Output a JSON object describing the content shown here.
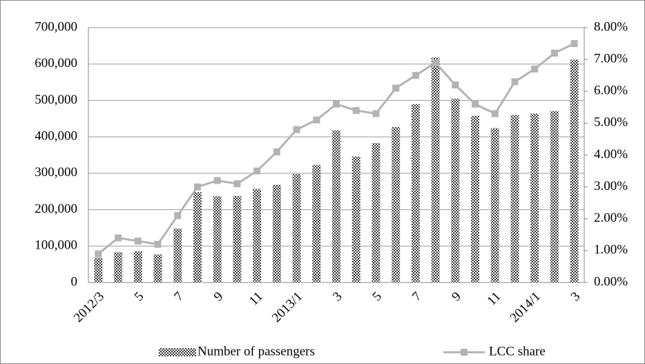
{
  "chart_data": {
    "type": "bar-line",
    "categories": [
      "2012/3",
      null,
      "5",
      null,
      "7",
      null,
      "9",
      null,
      "11",
      null,
      "2013/1",
      null,
      "3",
      null,
      "5",
      null,
      "7",
      null,
      "9",
      null,
      "11",
      null,
      "2014/1",
      null,
      "3"
    ],
    "series": [
      {
        "name": "Number of passengers",
        "type": "bar",
        "color": "#3a3a3a",
        "values": [
          68000,
          83000,
          86000,
          77000,
          148000,
          248000,
          237000,
          238000,
          257000,
          268000,
          298000,
          323000,
          418000,
          346000,
          383000,
          427000,
          490000,
          618000,
          505000,
          458000,
          424000,
          460000,
          464000,
          471000,
          612000
        ]
      },
      {
        "name": "LCC share",
        "type": "line",
        "axis": "y2",
        "color": "#b3b3b3",
        "values": [
          0.9,
          1.4,
          1.3,
          1.2,
          2.1,
          3.0,
          3.2,
          3.1,
          3.5,
          4.1,
          4.8,
          5.1,
          5.6,
          5.4,
          5.3,
          6.1,
          6.5,
          6.9,
          6.2,
          5.6,
          5.3,
          6.3,
          6.7,
          7.2,
          7.5
        ]
      }
    ],
    "ylim": [
      0,
      700000
    ],
    "yticks": [
      0,
      {
        "value": 100000,
        "label": "100,000"
      },
      {
        "value": 200000,
        "label": "200,000"
      },
      {
        "value": 300000,
        "label": "300,000"
      },
      {
        "value": 400000,
        "label": "400,000"
      },
      {
        "value": 500000,
        "label": "500,000"
      },
      {
        "value": 600000,
        "label": "600,000"
      },
      {
        "value": 700000,
        "label": "700,000"
      }
    ],
    "y2lim": [
      0,
      8
    ],
    "y2ticks": [
      {
        "value": 0,
        "label": "0.00%"
      },
      {
        "value": 1,
        "label": "1.00%"
      },
      {
        "value": 2,
        "label": "2.00%"
      },
      {
        "value": 3,
        "label": "3.00%"
      },
      {
        "value": 4,
        "label": "4.00%"
      },
      {
        "value": 5,
        "label": "5.00%"
      },
      {
        "value": 6,
        "label": "6.00%"
      },
      {
        "value": 7,
        "label": "7.00%"
      },
      {
        "value": 8,
        "label": "8.00%"
      }
    ],
    "grid": true,
    "legend": "bottom"
  }
}
